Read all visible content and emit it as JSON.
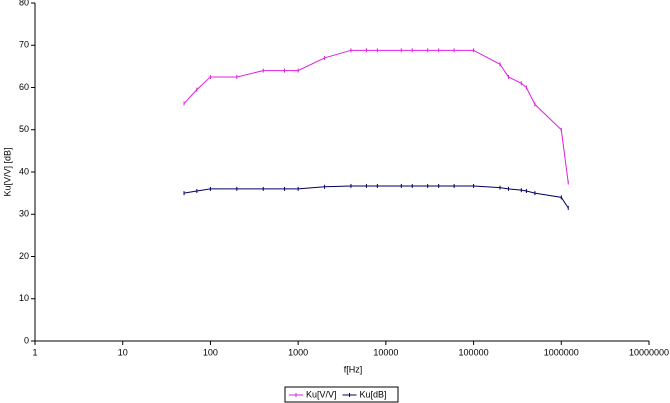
{
  "chart_data": {
    "type": "line",
    "x_label": "f[Hz]",
    "y_label": "Ku[V/V]  [dB]",
    "log_x": true,
    "x": [
      50,
      70,
      100,
      200,
      400,
      700,
      1000,
      2000,
      4000,
      6000,
      8000,
      15000,
      20000,
      30000,
      40000,
      60000,
      100000,
      200000,
      250000,
      350000,
      400000,
      500000,
      1000000,
      1200000
    ],
    "series": [
      {
        "name": "Ku[V/V]",
        "color": "#e020e0",
        "values": [
          56.2,
          59.5,
          62.5,
          62.5,
          64,
          64,
          64,
          67,
          68.8,
          68.8,
          68.8,
          68.8,
          68.8,
          68.8,
          68.8,
          68.8,
          68.8,
          65.5,
          62.5,
          61,
          60,
          56,
          50,
          37.5
        ]
      },
      {
        "name": "Ku[dB]",
        "color": "#000060",
        "values": [
          35,
          35.5,
          36,
          36,
          36,
          36,
          36,
          36.5,
          36.7,
          36.7,
          36.7,
          36.7,
          36.7,
          36.7,
          36.7,
          36.7,
          36.7,
          36.3,
          36,
          35.7,
          35.5,
          35,
          34,
          31.5
        ]
      }
    ],
    "xlim": [
      1,
      10000000
    ],
    "xticks": [
      1,
      10,
      100,
      1000,
      10000,
      100000,
      1000000,
      10000000
    ],
    "ylim": [
      0,
      80
    ],
    "yticks": [
      0,
      10,
      20,
      30,
      40,
      50,
      60,
      70,
      80
    ],
    "legend": "bottom"
  }
}
